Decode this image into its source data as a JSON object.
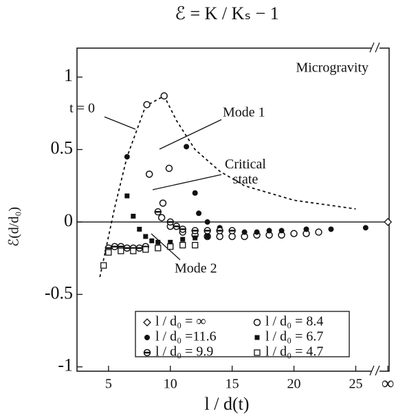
{
  "chart_data": {
    "type": "scatter",
    "title": "ℰ = K / Kₛ − 1",
    "ylabel": "ℰ(d/d₀)",
    "xlabel": "l / d(t)",
    "xlim": [
      2.45,
      27.7
    ],
    "ylim": [
      -1.03,
      1.2
    ],
    "xticks": [
      5,
      10,
      15,
      20,
      25,
      {
        "value": 27.6,
        "label": "∞"
      }
    ],
    "yticks": [
      1,
      0.5,
      0,
      -0.5,
      -1
    ],
    "annotations": [
      "Microgravity",
      "t = 0",
      "Mode 1",
      "Critical state",
      "Mode 2"
    ],
    "curve": {
      "x": [
        4.3,
        5.5,
        6.5,
        8,
        9.5,
        10.5,
        12,
        14,
        16,
        20,
        25
      ],
      "y": [
        -0.38,
        0.1,
        0.45,
        0.8,
        0.87,
        0.7,
        0.5,
        0.35,
        0.25,
        0.15,
        0.09
      ]
    },
    "series": [
      {
        "name": "l / d₀ = ∞",
        "marker": "diamond",
        "x": [
          27.6
        ],
        "values": [
          0
        ]
      },
      {
        "name": "l / d₀ = 8.4",
        "marker": "open-circle",
        "x": [
          8.1,
          9.5,
          8.3,
          9.9,
          9.4,
          9.3,
          10,
          11,
          12,
          13,
          14,
          15,
          16,
          17,
          18,
          19,
          20,
          21,
          22
        ],
        "values": [
          0.81,
          0.87,
          0.33,
          0.37,
          0.13,
          0.03,
          -0.03,
          -0.07,
          -0.09,
          -0.1,
          -0.1,
          -0.1,
          -0.1,
          -0.09,
          -0.09,
          -0.09,
          -0.08,
          -0.08,
          -0.07
        ]
      },
      {
        "name": "l / d₀ =11.6",
        "marker": "filled-circle",
        "x": [
          4.9,
          6.5,
          11.3,
          12,
          12.3,
          13,
          14,
          15,
          16,
          17,
          18,
          19,
          21,
          23,
          25.8
        ],
        "values": [
          -0.2,
          0.45,
          0.52,
          0.2,
          0.06,
          0,
          -0.04,
          -0.06,
          -0.07,
          -0.07,
          -0.06,
          -0.06,
          -0.05,
          -0.05,
          -0.04
        ]
      },
      {
        "name": "l / d₀ = 6.7",
        "marker": "filled-square",
        "x": [
          6.5,
          7,
          7.5,
          8,
          8.5,
          9,
          10,
          11,
          12,
          13
        ],
        "values": [
          0.18,
          0.04,
          -0.05,
          -0.1,
          -0.13,
          -0.14,
          -0.14,
          -0.12,
          -0.11,
          -0.1
        ]
      },
      {
        "name": "l / d₀ = 9.9",
        "marker": "half-circle",
        "x": [
          5,
          5.5,
          6,
          6.5,
          7,
          7.5,
          8,
          9,
          10,
          10.5,
          11,
          12,
          13,
          14,
          15
        ],
        "values": [
          -0.18,
          -0.17,
          -0.17,
          -0.18,
          -0.18,
          -0.18,
          -0.17,
          0.07,
          0,
          -0.03,
          -0.05,
          -0.06,
          -0.06,
          -0.06,
          -0.06
        ]
      },
      {
        "name": "l / d₀ = 4.7",
        "marker": "open-square",
        "x": [
          4.6,
          5,
          6,
          7,
          8,
          9,
          10,
          11,
          12
        ],
        "values": [
          -0.3,
          -0.21,
          -0.2,
          -0.2,
          -0.19,
          -0.18,
          -0.17,
          -0.16,
          -0.16
        ]
      }
    ]
  }
}
